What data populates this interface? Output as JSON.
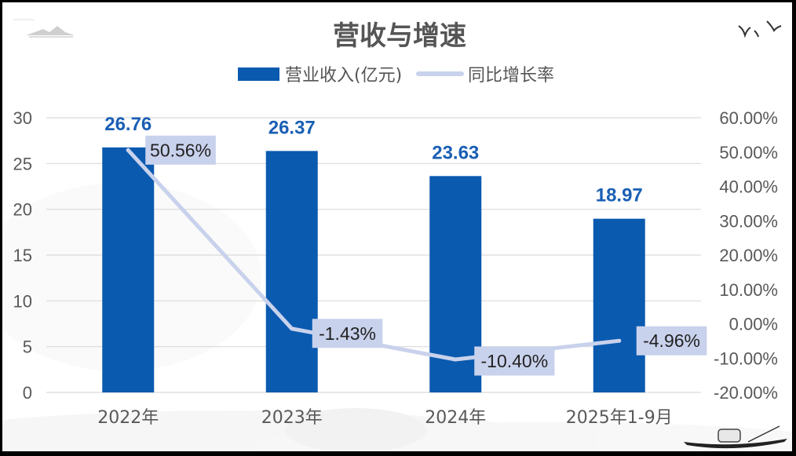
{
  "title": "营收与增速",
  "legend": {
    "bar_label": "营业收入(亿元)",
    "line_label": "同比增长率"
  },
  "colors": {
    "bar": "#0a5ab0",
    "line": "#c9d2ec",
    "label_box": "#c9d2ec",
    "bar_label": "#1a5fb4",
    "grid": "#d9d9d9"
  },
  "chart_data": {
    "type": "bar",
    "title": "营收与增速",
    "categories": [
      "2022年",
      "2023年",
      "2024年",
      "2025年1-9月"
    ],
    "series": [
      {
        "name": "营业收入(亿元)",
        "type": "bar",
        "axis": "left",
        "values": [
          26.76,
          26.37,
          23.63,
          18.97
        ]
      },
      {
        "name": "同比增长率",
        "type": "line",
        "axis": "right",
        "values": [
          50.56,
          -1.43,
          -10.4,
          -4.96
        ]
      }
    ],
    "bar_data_labels": [
      "26.76",
      "26.37",
      "23.63",
      "18.97"
    ],
    "line_data_labels": [
      "50.56%",
      "-1.43%",
      "-10.40%",
      "-4.96%"
    ],
    "y_left": {
      "min": 0,
      "max": 30,
      "ticks": [
        "0",
        "5",
        "10",
        "15",
        "20",
        "25",
        "30"
      ]
    },
    "y_right": {
      "min": -20,
      "max": 60,
      "ticks": [
        "-20.00%",
        "-10.00%",
        "0.00%",
        "10.00%",
        "20.00%",
        "30.00%",
        "40.00%",
        "50.00%",
        "60.00%"
      ]
    },
    "grid": true,
    "legend_position": "top"
  }
}
